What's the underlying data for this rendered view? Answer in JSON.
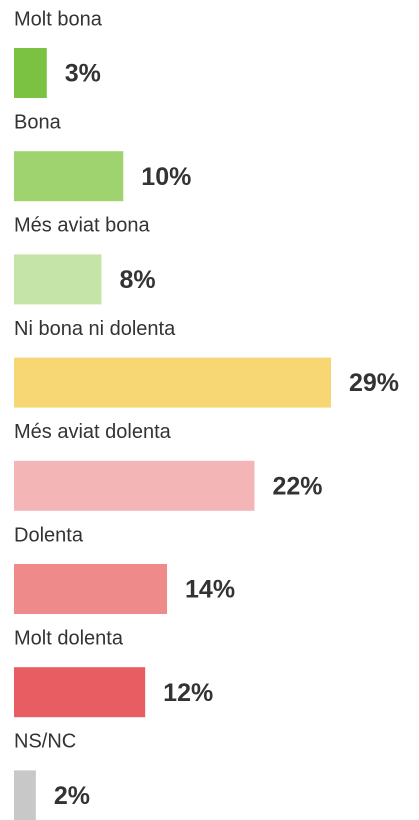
{
  "chart_data": {
    "type": "bar",
    "orientation": "horizontal",
    "categories": [
      "Molt bona",
      "Bona",
      "Més aviat bona",
      "Ni bona ni dolenta",
      "Més aviat dolenta",
      "Dolenta",
      "Molt dolenta",
      "NS/NC"
    ],
    "values": [
      3,
      10,
      8,
      29,
      22,
      14,
      12,
      2
    ],
    "value_labels": [
      "3%",
      "10%",
      "8%",
      "29%",
      "22%",
      "14%",
      "12%",
      "2%"
    ],
    "colors": [
      "#7cc242",
      "#9fd36f",
      "#c5e4a7",
      "#f7d774",
      "#f4b5b6",
      "#ef8a8a",
      "#e85d62",
      "#c8c8c8"
    ]
  }
}
